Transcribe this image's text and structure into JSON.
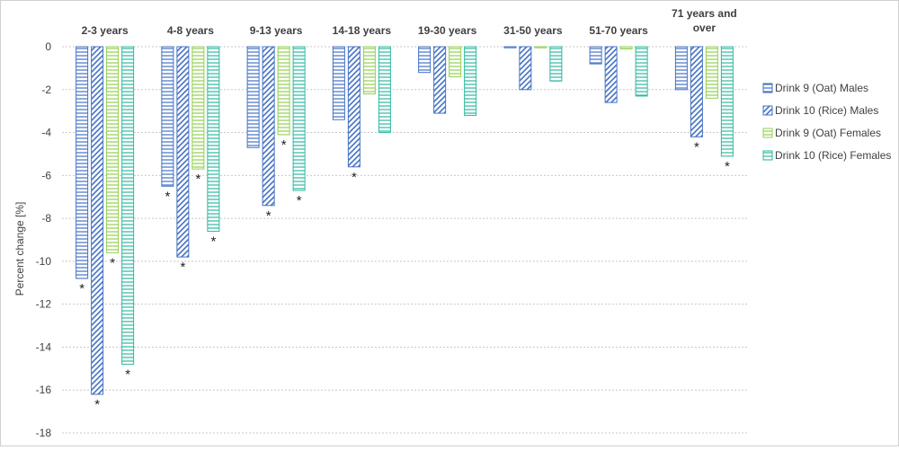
{
  "chart_data": {
    "type": "bar",
    "title": "",
    "xlabel": "",
    "ylabel": "Percent change [%]",
    "ylim": [
      -18,
      0
    ],
    "yticks": [
      0,
      -2,
      -4,
      -6,
      -8,
      -10,
      -12,
      -14,
      -16,
      -18
    ],
    "grid": "horizontal dotted",
    "legend_position": "right",
    "x_axis_position": "top",
    "categories": [
      "2-3 years",
      "4-8 years",
      "9-13 years",
      "14-18 years",
      "19-30 years",
      "31-50 years",
      "51-70 years",
      "71 years and over"
    ],
    "category_lines": [
      [
        "2-3 years"
      ],
      [
        "4-8 years"
      ],
      [
        "9-13 years"
      ],
      [
        "14-18 years"
      ],
      [
        "19-30 years"
      ],
      [
        "31-50 years"
      ],
      [
        "51-70 years"
      ],
      [
        "71 years and",
        "over"
      ]
    ],
    "significance_marker": "*",
    "series": [
      {
        "name": "Drink 9 (Oat) Males",
        "pattern": "horizontal-lines",
        "color": "#4472c4",
        "values": [
          -10.8,
          -6.5,
          -4.7,
          -3.4,
          -1.2,
          -0.05,
          -0.8,
          -2.0
        ],
        "significant": [
          true,
          true,
          false,
          false,
          false,
          false,
          false,
          false
        ]
      },
      {
        "name": "Drink 10 (Rice) Males",
        "pattern": "diagonal-lines",
        "color": "#4472c4",
        "values": [
          -16.2,
          -9.8,
          -7.4,
          -5.6,
          -3.1,
          -2.0,
          -2.6,
          -4.2
        ],
        "significant": [
          true,
          true,
          true,
          true,
          false,
          false,
          false,
          true
        ]
      },
      {
        "name": "Drink 9 (Oat) Females",
        "pattern": "horizontal-lines",
        "color": "#92d050",
        "values": [
          -9.6,
          -5.7,
          -4.1,
          -2.2,
          -1.4,
          -0.05,
          -0.1,
          -2.4
        ],
        "significant": [
          true,
          true,
          true,
          false,
          false,
          false,
          false,
          false
        ]
      },
      {
        "name": "Drink 10 (Rice) Females",
        "pattern": "horizontal-lines",
        "color": "#2eb8a0",
        "values": [
          -14.8,
          -8.6,
          -6.7,
          -4.0,
          -3.2,
          -1.6,
          -2.3,
          -5.1
        ],
        "significant": [
          true,
          true,
          true,
          false,
          false,
          false,
          false,
          true
        ]
      }
    ]
  }
}
